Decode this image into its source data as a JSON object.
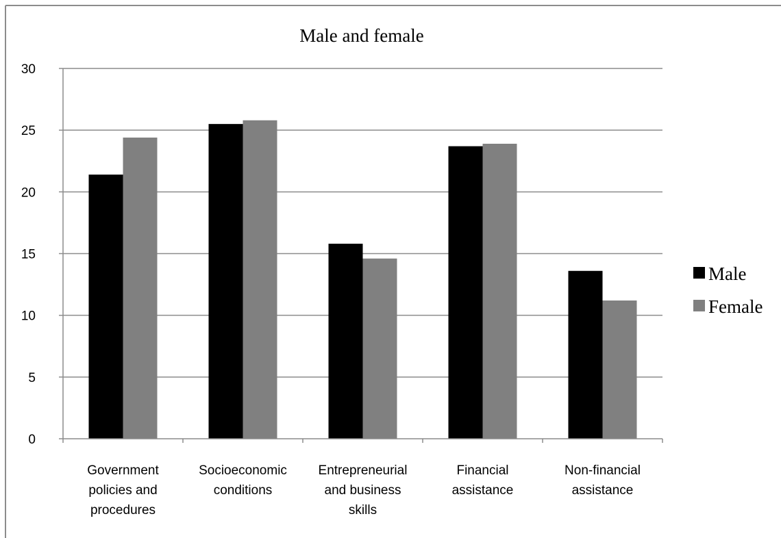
{
  "chart_data": {
    "type": "bar",
    "title": "Male and female",
    "xlabel": "",
    "ylabel": "",
    "ylim": [
      0,
      30
    ],
    "yticks": [
      0,
      5,
      10,
      15,
      20,
      25,
      30
    ],
    "grid": true,
    "legend_position": "right",
    "categories": [
      [
        "Government",
        "policies and",
        "procedures"
      ],
      [
        "Socioeconomic",
        "conditions"
      ],
      [
        "Entrepreneurial",
        "and business",
        "skills"
      ],
      [
        "Financial",
        "assistance"
      ],
      [
        "Non-financial",
        "assistance"
      ]
    ],
    "series": [
      {
        "name": "Male",
        "color": "#000000",
        "values": [
          21.4,
          25.5,
          15.8,
          23.7,
          13.6
        ]
      },
      {
        "name": "Female",
        "color": "#808080",
        "values": [
          24.4,
          25.8,
          14.6,
          23.9,
          11.2
        ]
      }
    ]
  }
}
